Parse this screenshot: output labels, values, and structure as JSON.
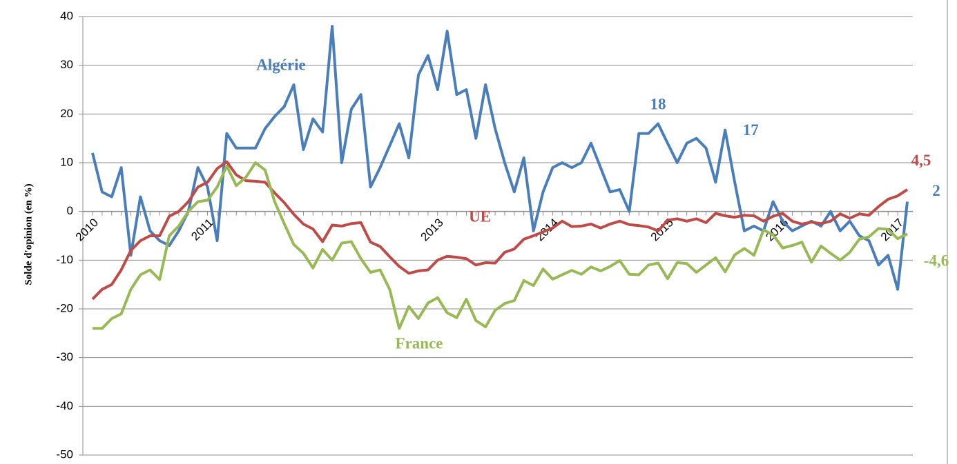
{
  "chart_data": {
    "type": "line",
    "y_label": "Solde d'opinion (en %)",
    "categories": [
      "2010",
      null,
      null,
      null,
      null,
      null,
      null,
      null,
      null,
      null,
      null,
      null,
      "2011",
      null,
      null,
      null,
      null,
      null,
      null,
      null,
      null,
      null,
      null,
      null,
      null,
      null,
      null,
      null,
      null,
      null,
      null,
      null,
      null,
      null,
      null,
      null,
      "2013",
      null,
      null,
      null,
      null,
      null,
      null,
      null,
      null,
      null,
      null,
      null,
      "2014",
      null,
      null,
      null,
      null,
      null,
      null,
      null,
      null,
      null,
      null,
      null,
      "2015",
      null,
      null,
      null,
      null,
      null,
      null,
      null,
      null,
      null,
      null,
      null,
      "2016",
      null,
      null,
      null,
      null,
      null,
      null,
      null,
      null,
      null,
      null,
      null,
      "2017",
      null
    ],
    "ylim": [
      -50,
      40
    ],
    "yticks": [
      -50,
      -40,
      -30,
      -20,
      -10,
      0,
      10,
      20,
      30,
      40
    ],
    "grid": true,
    "series": [
      {
        "name": "Algérie",
        "color": "#4a7ebb",
        "values": [
          12,
          4,
          3,
          9,
          -9,
          3,
          -4,
          -6,
          -7,
          -4,
          0,
          9,
          5,
          -6,
          16,
          13,
          13,
          13,
          17,
          19.5,
          21.5,
          26,
          12.7,
          19,
          16.3,
          38,
          10,
          21,
          24,
          5,
          9,
          13.5,
          18,
          11,
          28,
          32,
          25,
          37,
          24,
          25,
          15,
          26,
          17,
          10,
          4,
          11,
          -4,
          4,
          9,
          10,
          9,
          10,
          14,
          9,
          4,
          4.5,
          0,
          16,
          16,
          18,
          14,
          10,
          14,
          15,
          13,
          6,
          16.7,
          6,
          -4,
          -3,
          -4,
          2,
          -2,
          -4,
          -3,
          -2,
          -3,
          0,
          -4,
          -2,
          -5,
          -6,
          -11,
          -9,
          -16,
          2
        ],
        "value_labels": [
          null,
          null,
          null,
          null,
          null,
          null,
          null,
          null,
          null,
          null,
          null,
          null,
          null,
          null,
          null,
          null,
          null,
          null,
          null,
          null,
          null,
          null,
          null,
          null,
          null,
          null,
          null,
          null,
          null,
          null,
          null,
          null,
          null,
          null,
          null,
          null,
          null,
          null,
          null,
          null,
          null,
          null,
          null,
          null,
          null,
          null,
          null,
          null,
          null,
          null,
          null,
          null,
          null,
          null,
          null,
          null,
          null,
          null,
          null,
          "18",
          null,
          null,
          null,
          null,
          null,
          null,
          "17",
          null,
          null,
          null,
          null,
          null,
          null,
          null,
          null,
          null,
          null,
          null,
          null,
          null,
          null,
          null,
          null,
          null,
          null,
          "2"
        ]
      },
      {
        "name": "UE",
        "color": "#be4b48",
        "values": [
          -18,
          -16,
          -15,
          -12,
          -8,
          -6,
          -5,
          -5,
          -1,
          0,
          2,
          5,
          6,
          8.8,
          10.2,
          7.5,
          6.3,
          6.2,
          6,
          3.8,
          1.8,
          -0.6,
          -2.6,
          -3.6,
          -6.2,
          -2.8,
          -3,
          -2.5,
          -2.3,
          -6.3,
          -7.2,
          -9.3,
          -11.3,
          -12.7,
          -12.2,
          -12,
          -10,
          -9.2,
          -9.4,
          -9.7,
          -11,
          -10.5,
          -10.6,
          -8.4,
          -7.7,
          -5.7,
          -5,
          -4.2,
          -3.4,
          -2,
          -3.1,
          -3,
          -2.6,
          -3.4,
          -2.6,
          -2,
          -2.7,
          -2.9,
          -3.2,
          -4,
          -1.8,
          -1.5,
          -2,
          -1.5,
          -2.3,
          -0.4,
          -0.9,
          -1.2,
          -0.8,
          -0.9,
          -2,
          -1,
          -0.4,
          -2,
          -2.6,
          -2.2,
          -2.5,
          -2,
          -0.5,
          -1.4,
          -0.5,
          -0.8,
          1,
          2.5,
          3.2,
          4.5
        ],
        "value_labels": [
          null,
          null,
          null,
          null,
          null,
          null,
          null,
          null,
          null,
          null,
          null,
          null,
          null,
          null,
          null,
          null,
          null,
          null,
          null,
          null,
          null,
          null,
          null,
          null,
          null,
          null,
          null,
          null,
          null,
          null,
          null,
          null,
          null,
          null,
          null,
          null,
          null,
          null,
          null,
          null,
          null,
          null,
          null,
          null,
          null,
          null,
          null,
          null,
          null,
          null,
          null,
          null,
          null,
          null,
          null,
          null,
          null,
          null,
          null,
          null,
          null,
          null,
          null,
          null,
          null,
          null,
          null,
          null,
          null,
          null,
          null,
          null,
          null,
          null,
          null,
          null,
          null,
          null,
          null,
          null,
          null,
          null,
          null,
          null,
          null,
          "4,5"
        ]
      },
      {
        "name": "France",
        "color": "#98b954",
        "values": [
          -24,
          -24,
          -22,
          -21,
          -16,
          -13,
          -12,
          -14,
          -5,
          -3,
          0,
          2,
          2.3,
          5,
          9.3,
          5.3,
          7,
          10,
          8.5,
          2,
          -2.5,
          -6.8,
          -8.6,
          -11.6,
          -7.8,
          -10,
          -6.5,
          -6.2,
          -9.7,
          -12.5,
          -12,
          -16,
          -24,
          -19.5,
          -22,
          -18.8,
          -17.7,
          -20.8,
          -21.8,
          -18,
          -22.4,
          -23.7,
          -20.3,
          -18.9,
          -18.3,
          -14.2,
          -15.2,
          -11.8,
          -13.9,
          -13,
          -12.1,
          -12.9,
          -11.4,
          -12.2,
          -11.3,
          -10.1,
          -12.9,
          -13,
          -11,
          -10.6,
          -13.8,
          -10.5,
          -10.7,
          -12.5,
          -11,
          -9.5,
          -12.4,
          -8.9,
          -7.6,
          -9,
          -3.8,
          -4.8,
          -7.5,
          -7,
          -6.3,
          -10.4,
          -7.1,
          -8.6,
          -10,
          -8.4,
          -5.7,
          -5.2,
          -3.5,
          -3.7,
          -5.6,
          -4.6
        ],
        "value_labels": [
          null,
          null,
          null,
          null,
          null,
          null,
          null,
          null,
          null,
          null,
          null,
          null,
          null,
          null,
          null,
          null,
          null,
          null,
          null,
          null,
          null,
          null,
          null,
          null,
          null,
          null,
          null,
          null,
          null,
          null,
          null,
          null,
          null,
          null,
          null,
          null,
          null,
          null,
          null,
          null,
          null,
          null,
          null,
          null,
          null,
          null,
          null,
          null,
          null,
          null,
          null,
          null,
          null,
          null,
          null,
          null,
          null,
          null,
          null,
          null,
          null,
          null,
          null,
          null,
          null,
          null,
          null,
          null,
          null,
          null,
          null,
          null,
          null,
          null,
          null,
          null,
          null,
          null,
          null,
          null,
          null,
          null,
          null,
          null,
          null,
          "-4,6"
        ]
      }
    ]
  }
}
